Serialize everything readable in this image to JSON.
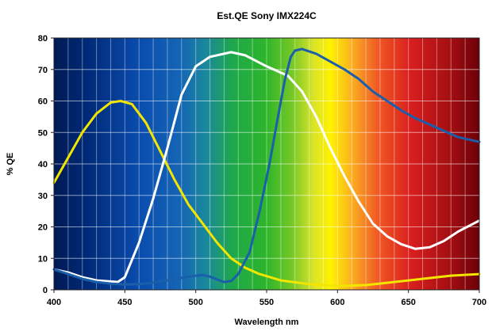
{
  "chart_data": {
    "type": "line",
    "title": "Est.QE Sony IMX224C",
    "xlabel": "Wavelength nm",
    "ylabel": "% QE",
    "xlim": [
      400,
      700
    ],
    "ylim": [
      0,
      80
    ],
    "x_ticks": [
      "400",
      "450",
      "500",
      "550",
      "600",
      "650",
      "700"
    ],
    "y_ticks": [
      "0",
      "10",
      "20",
      "30",
      "40",
      "50",
      "60",
      "70",
      "80"
    ],
    "grid": true,
    "background": "visible spectrum gradient",
    "series": [
      {
        "color": "#f2e600",
        "points": [
          [
            400,
            34
          ],
          [
            410,
            42
          ],
          [
            420,
            50
          ],
          [
            430,
            56
          ],
          [
            440,
            59.5
          ],
          [
            447,
            60
          ],
          [
            455,
            59
          ],
          [
            465,
            53
          ],
          [
            475,
            44
          ],
          [
            485,
            35
          ],
          [
            495,
            27
          ],
          [
            505,
            21
          ],
          [
            515,
            15
          ],
          [
            525,
            10
          ],
          [
            535,
            7
          ],
          [
            545,
            5
          ],
          [
            560,
            3
          ],
          [
            580,
            1.8
          ],
          [
            600,
            1.2
          ],
          [
            620,
            1.5
          ],
          [
            640,
            2.5
          ],
          [
            660,
            3.5
          ],
          [
            680,
            4.5
          ],
          [
            700,
            5
          ]
        ]
      },
      {
        "color": "#ffffff",
        "points": [
          [
            400,
            6.5
          ],
          [
            410,
            5.5
          ],
          [
            420,
            4
          ],
          [
            430,
            3
          ],
          [
            445,
            2.5
          ],
          [
            450,
            4
          ],
          [
            460,
            15
          ],
          [
            470,
            29
          ],
          [
            480,
            45
          ],
          [
            490,
            62
          ],
          [
            500,
            71
          ],
          [
            510,
            74
          ],
          [
            525,
            75.5
          ],
          [
            535,
            74.5
          ],
          [
            550,
            71
          ],
          [
            565,
            68
          ],
          [
            575,
            63
          ],
          [
            585,
            55
          ],
          [
            595,
            45
          ],
          [
            605,
            36
          ],
          [
            615,
            28
          ],
          [
            625,
            21
          ],
          [
            635,
            17
          ],
          [
            645,
            14.5
          ],
          [
            655,
            13
          ],
          [
            665,
            13.5
          ],
          [
            675,
            15.5
          ],
          [
            685,
            18.5
          ],
          [
            700,
            22
          ]
        ]
      },
      {
        "color": "#1b5fab",
        "points": [
          [
            400,
            6.5
          ],
          [
            410,
            5
          ],
          [
            420,
            3.5
          ],
          [
            430,
            2.5
          ],
          [
            440,
            2
          ],
          [
            450,
            1.7
          ],
          [
            460,
            1.8
          ],
          [
            470,
            2.3
          ],
          [
            480,
            3
          ],
          [
            490,
            3.8
          ],
          [
            500,
            4.5
          ],
          [
            505,
            4.7
          ],
          [
            510,
            4.2
          ],
          [
            515,
            3.3
          ],
          [
            520,
            2.5
          ],
          [
            525,
            2.8
          ],
          [
            530,
            5
          ],
          [
            538,
            12
          ],
          [
            545,
            25
          ],
          [
            552,
            40
          ],
          [
            558,
            55
          ],
          [
            563,
            67
          ],
          [
            567,
            74
          ],
          [
            570,
            76
          ],
          [
            575,
            76.5
          ],
          [
            585,
            75
          ],
          [
            595,
            72.5
          ],
          [
            605,
            70
          ],
          [
            615,
            67
          ],
          [
            625,
            63
          ],
          [
            635,
            60
          ],
          [
            645,
            57
          ],
          [
            655,
            54.5
          ],
          [
            665,
            52.5
          ],
          [
            675,
            50.5
          ],
          [
            685,
            48.5
          ],
          [
            700,
            47
          ]
        ]
      }
    ]
  }
}
